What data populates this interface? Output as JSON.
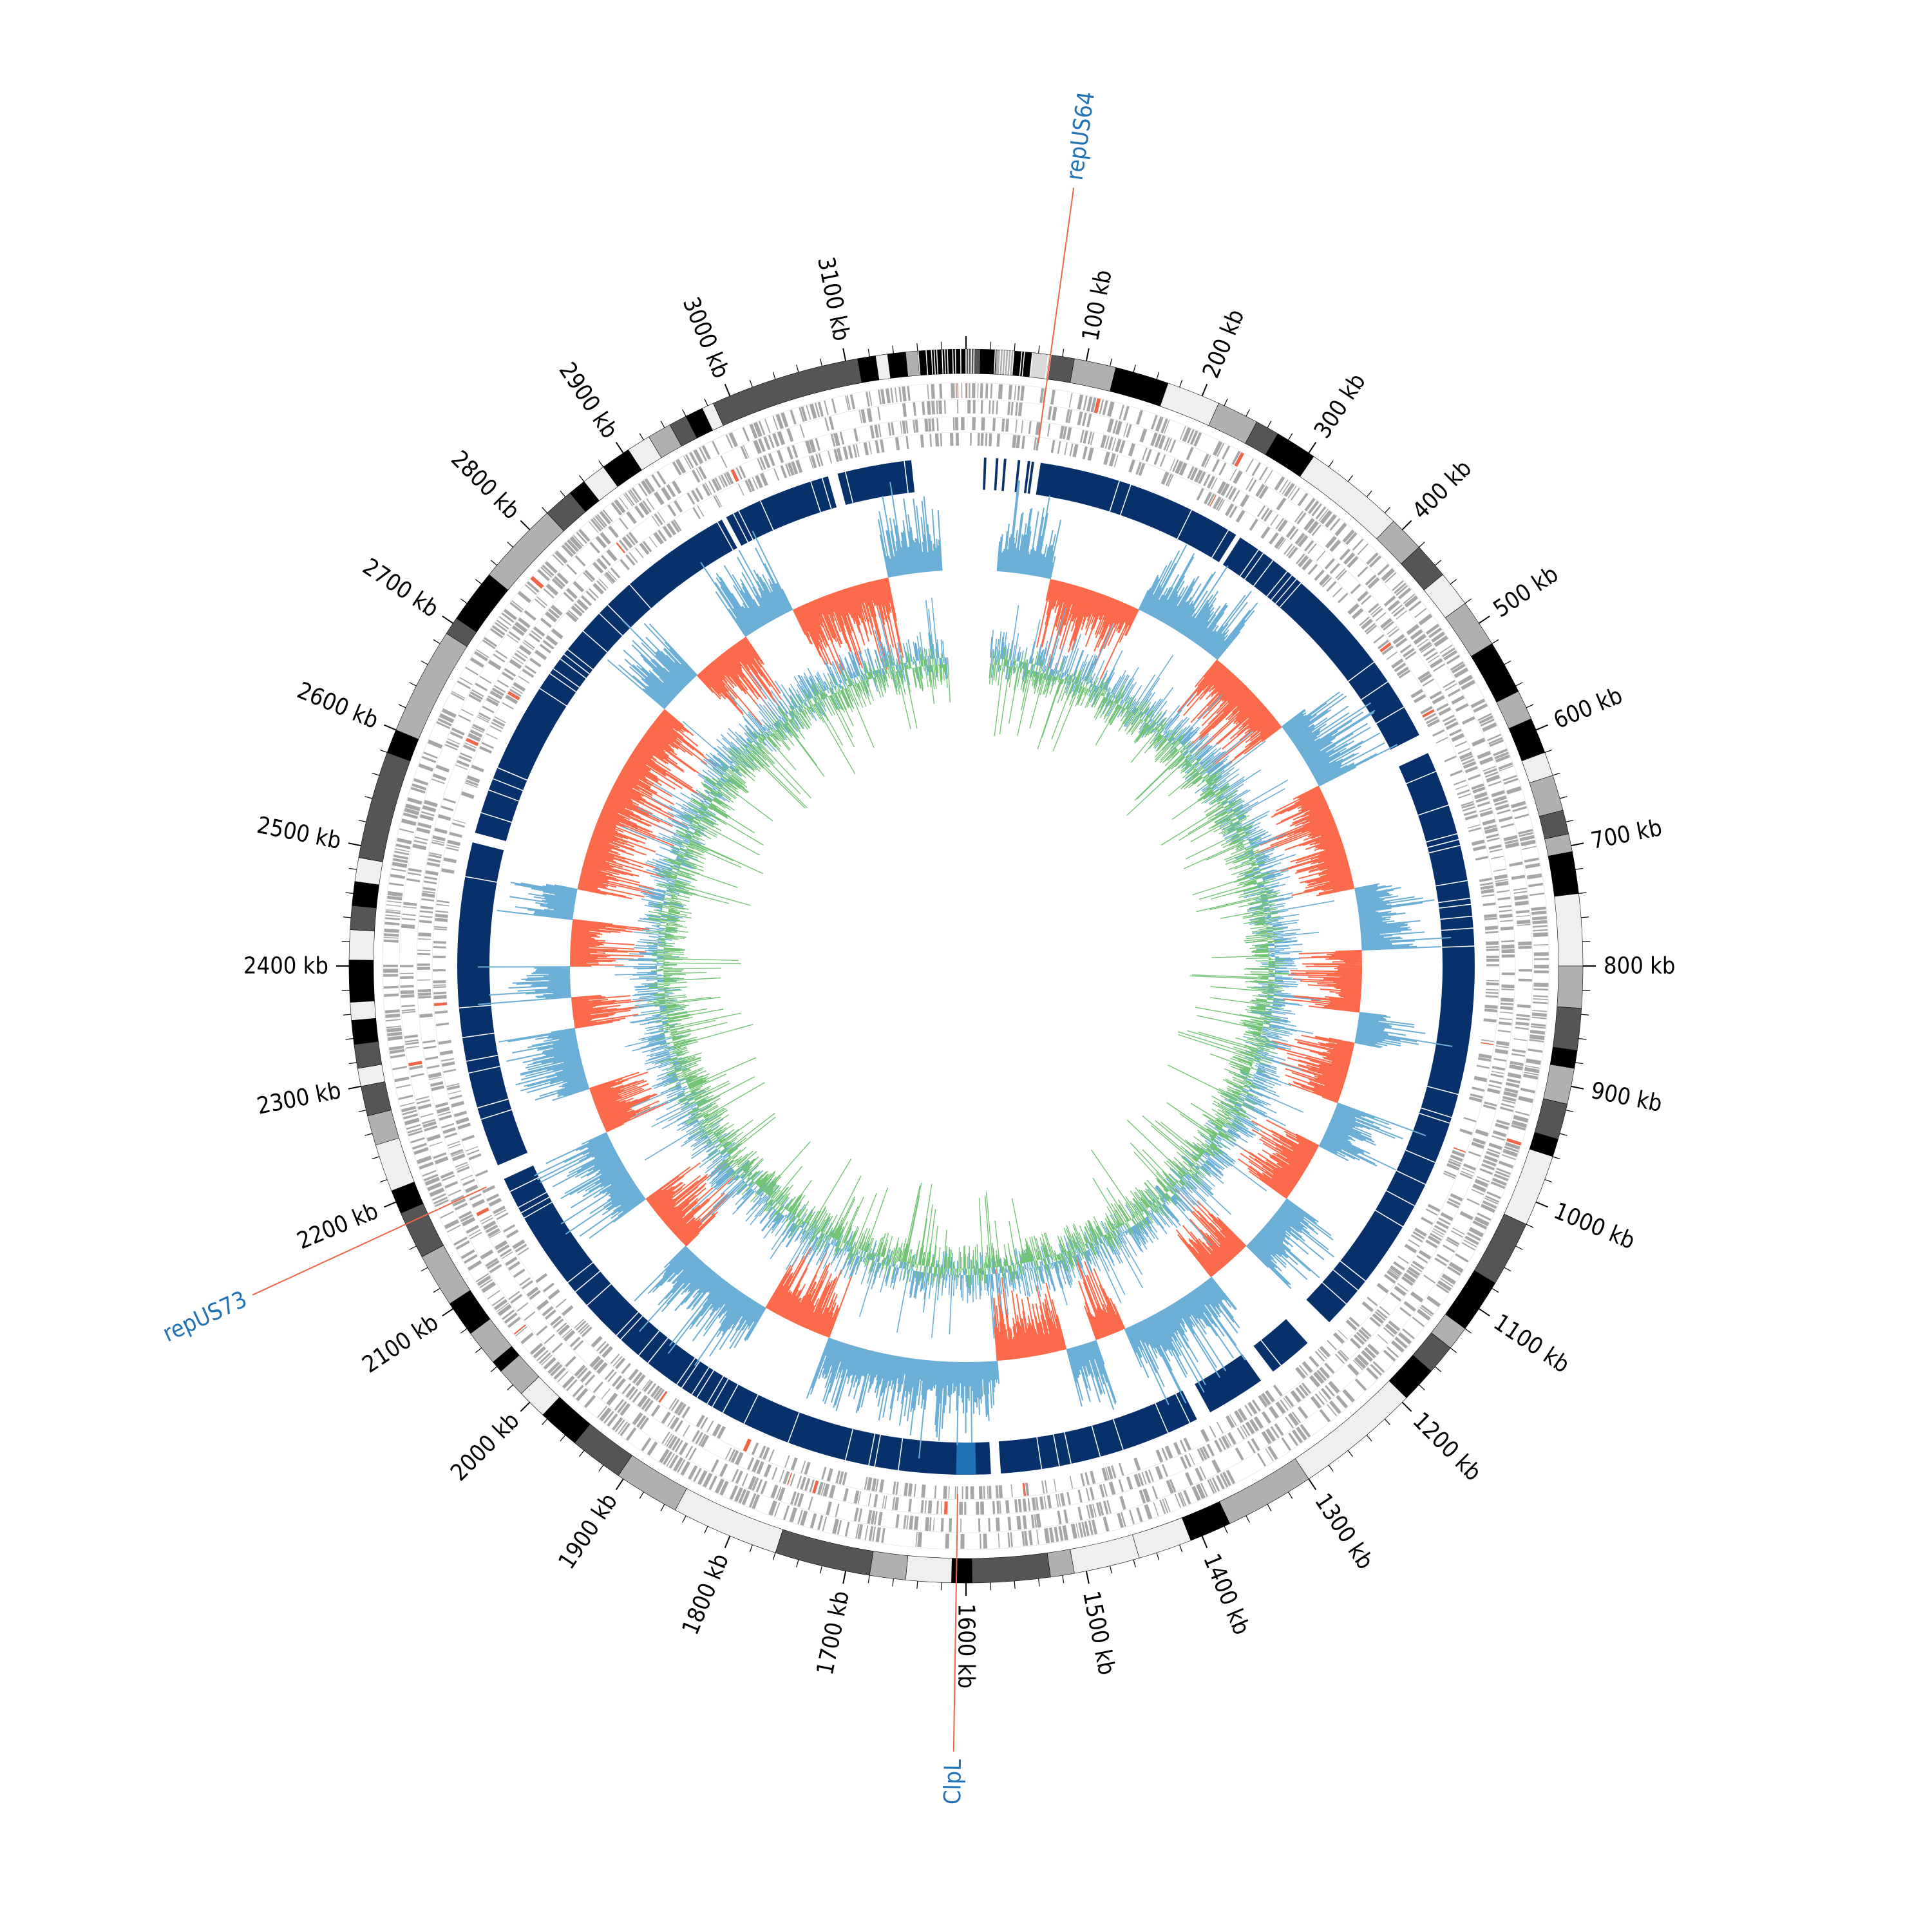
{
  "chart_data": {
    "type": "circular-genome-map",
    "genome_length_kb": 3200,
    "tick_labels": [
      {
        "kb": 100,
        "label": "100 kb"
      },
      {
        "kb": 200,
        "label": "200 kb"
      },
      {
        "kb": 300,
        "label": "300 kb"
      },
      {
        "kb": 400,
        "label": "400 kb"
      },
      {
        "kb": 500,
        "label": "500 kb"
      },
      {
        "kb": 600,
        "label": "600 kb"
      },
      {
        "kb": 700,
        "label": "700 kb"
      },
      {
        "kb": 800,
        "label": "800 kb"
      },
      {
        "kb": 900,
        "label": "900 kb"
      },
      {
        "kb": 1000,
        "label": "1000 kb"
      },
      {
        "kb": 1100,
        "label": "1100 kb"
      },
      {
        "kb": 1200,
        "label": "1200 kb"
      },
      {
        "kb": 1300,
        "label": "1300 kb"
      },
      {
        "kb": 1400,
        "label": "1400 kb"
      },
      {
        "kb": 1500,
        "label": "1500 kb"
      },
      {
        "kb": 1600,
        "label": "1600 kb"
      },
      {
        "kb": 1700,
        "label": "1700 kb"
      },
      {
        "kb": 1800,
        "label": "1800 kb"
      },
      {
        "kb": 1900,
        "label": "1900 kb"
      },
      {
        "kb": 2000,
        "label": "2000 kb"
      },
      {
        "kb": 2100,
        "label": "2100 kb"
      },
      {
        "kb": 2200,
        "label": "2200 kb"
      },
      {
        "kb": 2300,
        "label": "2300 kb"
      },
      {
        "kb": 2400,
        "label": "2400 kb"
      },
      {
        "kb": 2500,
        "label": "2500 kb"
      },
      {
        "kb": 2600,
        "label": "2600 kb"
      },
      {
        "kb": 2700,
        "label": "2700 kb"
      },
      {
        "kb": 2800,
        "label": "2800 kb"
      },
      {
        "kb": 2900,
        "label": "2900 kb"
      },
      {
        "kb": 3000,
        "label": "3000 kb"
      },
      {
        "kb": 3100,
        "label": "3100 kb"
      }
    ],
    "annotations": [
      {
        "label": "repUS64",
        "kb": 70
      },
      {
        "label": "ClpL",
        "kb": 1608
      },
      {
        "label": "repUS73",
        "kb": 2180
      }
    ],
    "contig_bands": [
      {
        "start": 0,
        "end": 12,
        "shade": "#555555"
      },
      {
        "start": 12,
        "end": 25,
        "shade": "#000000"
      },
      {
        "start": 25,
        "end": 40,
        "shade": "#b0b0b0"
      },
      {
        "start": 40,
        "end": 55,
        "shade": "#000000"
      },
      {
        "start": 55,
        "end": 70,
        "shade": "#d9d9d9"
      },
      {
        "start": 70,
        "end": 90,
        "shade": "#555555"
      },
      {
        "start": 90,
        "end": 125,
        "shade": "#b0b0b0"
      },
      {
        "start": 125,
        "end": 170,
        "shade": "#000000"
      },
      {
        "start": 170,
        "end": 215,
        "shade": "#efefef"
      },
      {
        "start": 215,
        "end": 250,
        "shade": "#b0b0b0"
      },
      {
        "start": 250,
        "end": 270,
        "shade": "#555555"
      },
      {
        "start": 270,
        "end": 305,
        "shade": "#000000"
      },
      {
        "start": 305,
        "end": 390,
        "shade": "#efefef"
      },
      {
        "start": 390,
        "end": 420,
        "shade": "#b0b0b0"
      },
      {
        "start": 420,
        "end": 450,
        "shade": "#555555"
      },
      {
        "start": 450,
        "end": 480,
        "shade": "#efefef"
      },
      {
        "start": 480,
        "end": 520,
        "shade": "#b0b0b0"
      },
      {
        "start": 520,
        "end": 565,
        "shade": "#000000"
      },
      {
        "start": 565,
        "end": 590,
        "shade": "#b0b0b0"
      },
      {
        "start": 590,
        "end": 620,
        "shade": "#000000"
      },
      {
        "start": 620,
        "end": 640,
        "shade": "#efefef"
      },
      {
        "start": 640,
        "end": 670,
        "shade": "#b0b0b0"
      },
      {
        "start": 670,
        "end": 690,
        "shade": "#555555"
      },
      {
        "start": 690,
        "end": 705,
        "shade": "#b0b0b0"
      },
      {
        "start": 705,
        "end": 740,
        "shade": "#000000"
      },
      {
        "start": 740,
        "end": 800,
        "shade": "#efefef"
      },
      {
        "start": 800,
        "end": 835,
        "shade": "#b0b0b0"
      },
      {
        "start": 835,
        "end": 870,
        "shade": "#555555"
      },
      {
        "start": 870,
        "end": 885,
        "shade": "#000000"
      },
      {
        "start": 885,
        "end": 915,
        "shade": "#b0b0b0"
      },
      {
        "start": 915,
        "end": 945,
        "shade": "#555555"
      },
      {
        "start": 945,
        "end": 960,
        "shade": "#000000"
      },
      {
        "start": 960,
        "end": 1020,
        "shade": "#efefef"
      },
      {
        "start": 1020,
        "end": 1075,
        "shade": "#555555"
      },
      {
        "start": 1075,
        "end": 1120,
        "shade": "#000000"
      },
      {
        "start": 1120,
        "end": 1140,
        "shade": "#b0b0b0"
      },
      {
        "start": 1140,
        "end": 1165,
        "shade": "#555555"
      },
      {
        "start": 1165,
        "end": 1195,
        "shade": "#000000"
      },
      {
        "start": 1195,
        "end": 1300,
        "shade": "#efefef"
      },
      {
        "start": 1300,
        "end": 1375,
        "shade": "#b0b0b0"
      },
      {
        "start": 1375,
        "end": 1410,
        "shade": "#000000"
      },
      {
        "start": 1410,
        "end": 1455,
        "shade": "#efefef"
      },
      {
        "start": 1455,
        "end": 1510,
        "shade": "#efefef"
      },
      {
        "start": 1510,
        "end": 1530,
        "shade": "#b0b0b0"
      },
      {
        "start": 1530,
        "end": 1595,
        "shade": "#555555"
      },
      {
        "start": 1595,
        "end": 1612,
        "shade": "#000000"
      },
      {
        "start": 1612,
        "end": 1650,
        "shade": "#efefef"
      },
      {
        "start": 1650,
        "end": 1680,
        "shade": "#b0b0b0"
      },
      {
        "start": 1680,
        "end": 1760,
        "shade": "#555555"
      },
      {
        "start": 1760,
        "end": 1850,
        "shade": "#efefef"
      },
      {
        "start": 1850,
        "end": 1905,
        "shade": "#b0b0b0"
      },
      {
        "start": 1905,
        "end": 1950,
        "shade": "#555555"
      },
      {
        "start": 1950,
        "end": 1985,
        "shade": "#000000"
      },
      {
        "start": 1985,
        "end": 2010,
        "shade": "#efefef"
      },
      {
        "start": 2010,
        "end": 2035,
        "shade": "#b0b0b0"
      },
      {
        "start": 2035,
        "end": 2045,
        "shade": "#000000"
      },
      {
        "start": 2045,
        "end": 2075,
        "shade": "#b0b0b0"
      },
      {
        "start": 2075,
        "end": 2105,
        "shade": "#000000"
      },
      {
        "start": 2105,
        "end": 2150,
        "shade": "#b0b0b0"
      },
      {
        "start": 2150,
        "end": 2190,
        "shade": "#555555"
      },
      {
        "start": 2190,
        "end": 2210,
        "shade": "#000000"
      },
      {
        "start": 2210,
        "end": 2250,
        "shade": "#efefef"
      },
      {
        "start": 2250,
        "end": 2275,
        "shade": "#b0b0b0"
      },
      {
        "start": 2275,
        "end": 2300,
        "shade": "#555555"
      },
      {
        "start": 2300,
        "end": 2315,
        "shade": "#efefef"
      },
      {
        "start": 2315,
        "end": 2335,
        "shade": "#555555"
      },
      {
        "start": 2335,
        "end": 2355,
        "shade": "#000000"
      },
      {
        "start": 2355,
        "end": 2370,
        "shade": "#efefef"
      },
      {
        "start": 2370,
        "end": 2405,
        "shade": "#000000"
      },
      {
        "start": 2405,
        "end": 2430,
        "shade": "#efefef"
      },
      {
        "start": 2430,
        "end": 2450,
        "shade": "#555555"
      },
      {
        "start": 2450,
        "end": 2470,
        "shade": "#000000"
      },
      {
        "start": 2470,
        "end": 2490,
        "shade": "#efefef"
      },
      {
        "start": 2490,
        "end": 2580,
        "shade": "#555555"
      },
      {
        "start": 2580,
        "end": 2600,
        "shade": "#000000"
      },
      {
        "start": 2600,
        "end": 2690,
        "shade": "#b0b0b0"
      },
      {
        "start": 2690,
        "end": 2705,
        "shade": "#555555"
      },
      {
        "start": 2705,
        "end": 2750,
        "shade": "#000000"
      },
      {
        "start": 2750,
        "end": 2820,
        "shade": "#b0b0b0"
      },
      {
        "start": 2820,
        "end": 2845,
        "shade": "#555555"
      },
      {
        "start": 2845,
        "end": 2860,
        "shade": "#000000"
      },
      {
        "start": 2860,
        "end": 2880,
        "shade": "#efefef"
      },
      {
        "start": 2880,
        "end": 2905,
        "shade": "#000000"
      },
      {
        "start": 2905,
        "end": 2925,
        "shade": "#efefef"
      },
      {
        "start": 2925,
        "end": 2945,
        "shade": "#b0b0b0"
      },
      {
        "start": 2945,
        "end": 2960,
        "shade": "#555555"
      },
      {
        "start": 2960,
        "end": 2975,
        "shade": "#000000"
      },
      {
        "start": 2975,
        "end": 2985,
        "shade": "#efefef"
      },
      {
        "start": 2985,
        "end": 3110,
        "shade": "#555555"
      },
      {
        "start": 3110,
        "end": 3125,
        "shade": "#000000"
      },
      {
        "start": 3125,
        "end": 3135,
        "shade": "#efefef"
      },
      {
        "start": 3135,
        "end": 3150,
        "shade": "#000000"
      },
      {
        "start": 3150,
        "end": 3160,
        "shade": "#b0b0b0"
      },
      {
        "start": 3160,
        "end": 3200,
        "shade": "#000000"
      }
    ],
    "blue_gaps": [
      {
        "start": 3145,
        "end": 3200
      },
      {
        "start": 0,
        "end": 75
      },
      {
        "start": 285,
        "end": 290
      },
      {
        "start": 560,
        "end": 580
      },
      {
        "start": 1195,
        "end": 1225
      },
      {
        "start": 1270,
        "end": 1285
      },
      {
        "start": 1345,
        "end": 1360
      },
      {
        "start": 1565,
        "end": 1575
      },
      {
        "start": 2180,
        "end": 2195
      },
      {
        "start": 2525,
        "end": 2535
      },
      {
        "start": 2945,
        "end": 2950
      },
      {
        "start": 3060,
        "end": 3070
      }
    ],
    "gc_skew_signs": [
      {
        "start": 0,
        "end": 110,
        "sign": "+"
      },
      {
        "start": 110,
        "end": 230,
        "sign": "-"
      },
      {
        "start": 230,
        "end": 350,
        "sign": "+"
      },
      {
        "start": 350,
        "end": 470,
        "sign": "-"
      },
      {
        "start": 470,
        "end": 560,
        "sign": "+"
      },
      {
        "start": 560,
        "end": 700,
        "sign": "-"
      },
      {
        "start": 700,
        "end": 780,
        "sign": "+"
      },
      {
        "start": 780,
        "end": 860,
        "sign": "-"
      },
      {
        "start": 860,
        "end": 900,
        "sign": "+"
      },
      {
        "start": 900,
        "end": 980,
        "sign": "-"
      },
      {
        "start": 980,
        "end": 1040,
        "sign": "+"
      },
      {
        "start": 1040,
        "end": 1120,
        "sign": "-"
      },
      {
        "start": 1120,
        "end": 1200,
        "sign": "+"
      },
      {
        "start": 1200,
        "end": 1260,
        "sign": "-"
      },
      {
        "start": 1260,
        "end": 1390,
        "sign": "+"
      },
      {
        "start": 1390,
        "end": 1430,
        "sign": "-"
      },
      {
        "start": 1430,
        "end": 1470,
        "sign": "+"
      },
      {
        "start": 1470,
        "end": 1560,
        "sign": "-"
      },
      {
        "start": 1560,
        "end": 1780,
        "sign": "+"
      },
      {
        "start": 1780,
        "end": 1870,
        "sign": "-"
      },
      {
        "start": 1870,
        "end": 2000,
        "sign": "+"
      },
      {
        "start": 2000,
        "end": 2080,
        "sign": "-"
      },
      {
        "start": 2080,
        "end": 2180,
        "sign": "+"
      },
      {
        "start": 2180,
        "end": 2240,
        "sign": "-"
      },
      {
        "start": 2240,
        "end": 2320,
        "sign": "+"
      },
      {
        "start": 2320,
        "end": 2360,
        "sign": "-"
      },
      {
        "start": 2360,
        "end": 2400,
        "sign": "+"
      },
      {
        "start": 2400,
        "end": 2460,
        "sign": "-"
      },
      {
        "start": 2460,
        "end": 2500,
        "sign": "+"
      },
      {
        "start": 2500,
        "end": 2760,
        "sign": "-"
      },
      {
        "start": 2760,
        "end": 2820,
        "sign": "+"
      },
      {
        "start": 2820,
        "end": 2900,
        "sign": "-"
      },
      {
        "start": 2900,
        "end": 2970,
        "sign": "+"
      },
      {
        "start": 2970,
        "end": 3100,
        "sign": "-"
      },
      {
        "start": 3100,
        "end": 3200,
        "sign": "+"
      }
    ],
    "colors": {
      "feature_gray": "#a6a6a6",
      "feature_highlight": "#ef6548",
      "similarity_track": "#08306b",
      "similarity_highlight": "#2171b5",
      "skew_positive": "#6baed6",
      "skew_negative": "#fb6a4a",
      "gc_content": "#74c476",
      "gc_overlay": "#6baed6",
      "annotation_line": "#ef6548",
      "annotation_text": "#2171b5"
    }
  }
}
